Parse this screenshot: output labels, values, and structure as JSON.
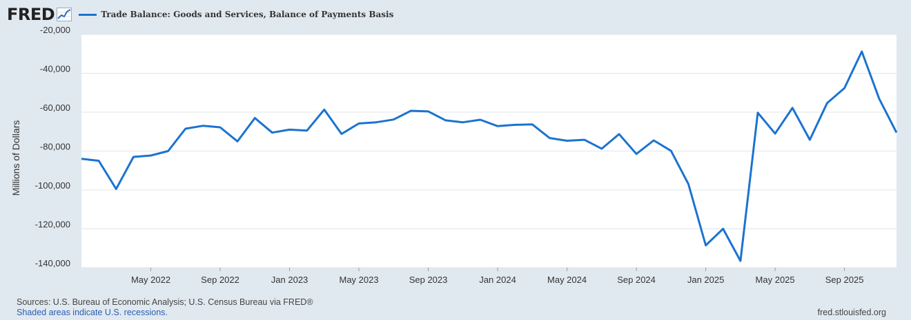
{
  "header": {
    "logo_text": "FRED",
    "logo_icon": "chart-trend-icon",
    "legend_label": "Trade Balance: Goods and Services, Balance of Payments Basis",
    "series_color": "#1a73d0"
  },
  "footer": {
    "sources": "Sources: U.S. Bureau of Economic Analysis; U.S. Census Bureau via FRED®",
    "recession_note": "Shaded areas indicate U.S. recessions.",
    "site": "fred.stlouisfed.org"
  },
  "chart_data": {
    "type": "line",
    "ylabel": "Millions of Dollars",
    "ylim": [
      -140000,
      -20000
    ],
    "yticks": [
      -20000,
      -40000,
      -60000,
      -80000,
      -100000,
      -120000,
      -140000
    ],
    "ytick_labels": [
      "-20,000",
      "-40,000",
      "-60,000",
      "-80,000",
      "-100,000",
      "-120,000",
      "-140,000"
    ],
    "xlim": [
      "2022-01",
      "2025-12"
    ],
    "xticks": [
      "2022-05",
      "2022-09",
      "2023-01",
      "2023-05",
      "2023-09",
      "2024-01",
      "2024-05",
      "2024-09",
      "2025-01",
      "2025-05",
      "2025-09"
    ],
    "xtick_labels": [
      "May 2022",
      "Sep 2022",
      "Jan 2023",
      "May 2023",
      "Sep 2023",
      "Jan 2024",
      "May 2024",
      "Sep 2024",
      "Jan 2025",
      "May 2025",
      "Sep 2025"
    ],
    "grid": true,
    "legend_position": "top-left",
    "series": [
      {
        "name": "Trade Balance: Goods and Services, Balance of Payments Basis",
        "x": [
          "2022-01",
          "2022-02",
          "2022-03",
          "2022-04",
          "2022-05",
          "2022-06",
          "2022-07",
          "2022-08",
          "2022-09",
          "2022-10",
          "2022-11",
          "2022-12",
          "2023-01",
          "2023-02",
          "2023-03",
          "2023-04",
          "2023-05",
          "2023-06",
          "2023-07",
          "2023-08",
          "2023-09",
          "2023-10",
          "2023-11",
          "2023-12",
          "2024-01",
          "2024-02",
          "2024-03",
          "2024-04",
          "2024-05",
          "2024-06",
          "2024-07",
          "2024-08",
          "2024-09",
          "2024-10",
          "2024-11",
          "2024-12",
          "2025-01",
          "2025-02",
          "2025-03",
          "2025-04",
          "2025-05",
          "2025-06",
          "2025-07",
          "2025-08",
          "2025-09",
          "2025-10",
          "2025-11",
          "2025-12"
        ],
        "values": [
          -84000,
          -85000,
          -99500,
          -83000,
          -82300,
          -80000,
          -68500,
          -67000,
          -67800,
          -75000,
          -63000,
          -70500,
          -69000,
          -69500,
          -58700,
          -71200,
          -65800,
          -65200,
          -63800,
          -59300,
          -59600,
          -64200,
          -65200,
          -63900,
          -67200,
          -66500,
          -66300,
          -73300,
          -74700,
          -74200,
          -78800,
          -71300,
          -81500,
          -74500,
          -79900,
          -97000,
          -128500,
          -120000,
          -136500,
          -60300,
          -71000,
          -57800,
          -74200,
          -55300,
          -47600,
          -28800,
          -53100,
          -70500
        ]
      }
    ]
  }
}
